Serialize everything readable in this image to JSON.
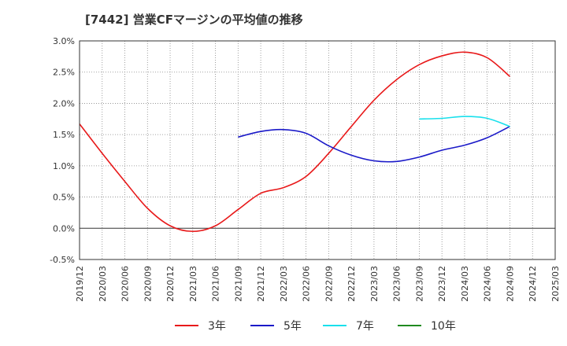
{
  "chart_data": {
    "type": "line",
    "title": "[7442]  営業CFマージンの平均値の推移",
    "xlabel": "",
    "ylabel": "",
    "ylim": [
      -0.5,
      3.0
    ],
    "y_ticks": [
      "-0.5%",
      "0.0%",
      "0.5%",
      "1.0%",
      "1.5%",
      "2.0%",
      "2.5%",
      "3.0%"
    ],
    "x_ticks": [
      "2019/12",
      "2020/03",
      "2020/06",
      "2020/09",
      "2020/12",
      "2021/03",
      "2021/06",
      "2021/09",
      "2021/12",
      "2022/03",
      "2022/06",
      "2022/09",
      "2022/12",
      "2023/03",
      "2023/06",
      "2023/09",
      "2023/12",
      "2024/03",
      "2024/06",
      "2024/09",
      "2024/12",
      "2025/03"
    ],
    "grid": true,
    "legend_position": "bottom",
    "series": [
      {
        "name": "3年",
        "color": "#e8191a",
        "x": [
          "2019/12",
          "2020/03",
          "2020/06",
          "2020/09",
          "2020/12",
          "2021/03",
          "2021/06",
          "2021/09",
          "2021/12",
          "2022/03",
          "2022/06",
          "2022/09",
          "2022/12",
          "2023/03",
          "2023/06",
          "2023/09",
          "2023/12",
          "2024/03",
          "2024/06",
          "2024/09"
        ],
        "values": [
          1.67,
          1.2,
          0.75,
          0.32,
          0.04,
          -0.05,
          0.04,
          0.3,
          0.56,
          0.65,
          0.83,
          1.2,
          1.63,
          2.05,
          2.38,
          2.62,
          2.76,
          2.82,
          2.73,
          2.43
        ]
      },
      {
        "name": "5年",
        "color": "#1a19c8",
        "x": [
          "2021/09",
          "2021/12",
          "2022/03",
          "2022/06",
          "2022/09",
          "2022/12",
          "2023/03",
          "2023/06",
          "2023/09",
          "2023/12",
          "2024/03",
          "2024/06",
          "2024/09"
        ],
        "values": [
          1.46,
          1.55,
          1.58,
          1.52,
          1.32,
          1.17,
          1.08,
          1.07,
          1.14,
          1.25,
          1.33,
          1.45,
          1.63
        ]
      },
      {
        "name": "7年",
        "color": "#19e0ec",
        "x": [
          "2023/09",
          "2023/12",
          "2024/03",
          "2024/06",
          "2024/09"
        ],
        "values": [
          1.75,
          1.76,
          1.79,
          1.76,
          1.63
        ]
      },
      {
        "name": "10年",
        "color": "#208a20",
        "x": [],
        "values": []
      }
    ]
  }
}
